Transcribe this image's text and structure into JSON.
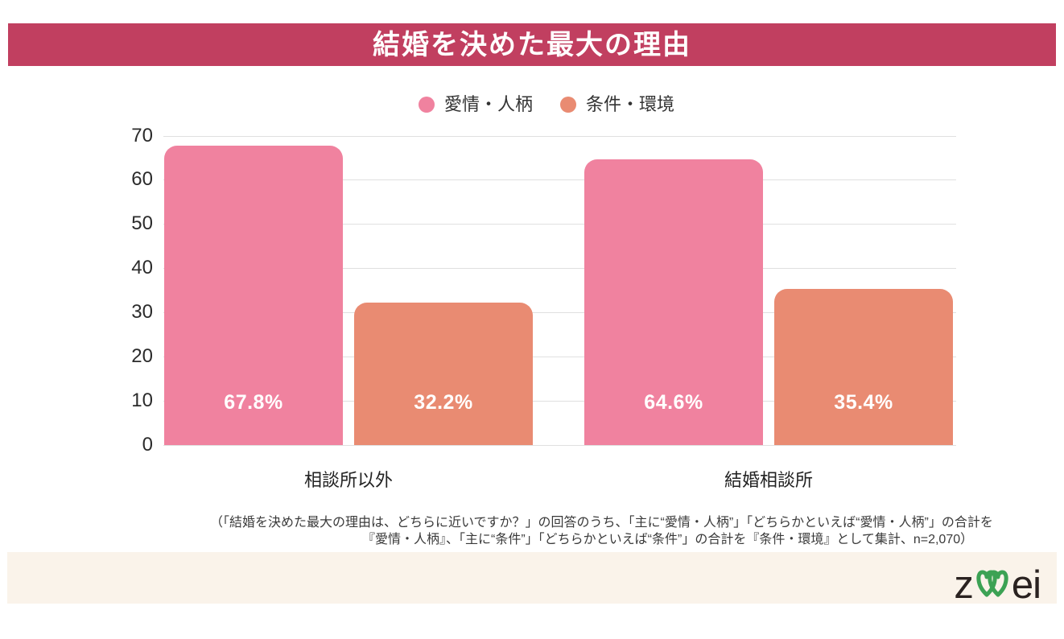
{
  "title": "結婚を決めた最大の理由",
  "legend": [
    {
      "label": "愛情・人柄",
      "color": "#F0829F"
    },
    {
      "label": "条件・環境",
      "color": "#E98B72"
    }
  ],
  "chart_data": {
    "type": "bar",
    "title": "結婚を決めた最大の理由",
    "categories": [
      "相談所以外",
      "結婚相談所"
    ],
    "series": [
      {
        "name": "愛情・人柄",
        "color": "#F0829F",
        "values": [
          67.8,
          64.6
        ]
      },
      {
        "name": "条件・環境",
        "color": "#E98B72",
        "values": [
          32.2,
          35.4
        ]
      }
    ],
    "value_labels": [
      [
        "67.8%",
        "32.2%"
      ],
      [
        "64.6%",
        "35.4%"
      ]
    ],
    "xlabel": "",
    "ylabel": "",
    "ylim": [
      0,
      70
    ],
    "yticks": [
      0,
      10,
      20,
      30,
      40,
      50,
      60,
      70
    ],
    "grid": true,
    "legend_position": "top"
  },
  "footnote": {
    "line1": "（「結婚を決めた最大の理由は、どちらに近いですか？」の回答のうち、「主に“愛情・人柄”」「どちらかといえば“愛情・人柄”」の合計を",
    "line2": "『愛情・人柄』、「主に“条件”」「どちらかといえば“条件”」の合計を『条件・環境』として集計、n=2,070）"
  },
  "footer": {
    "logo_text": "zwei",
    "logo_left": "z",
    "logo_right": "ei"
  },
  "colors": {
    "title_bar_bg": "#C13F60",
    "title_text": "#FFFFFF",
    "bar_pink": "#F0829F",
    "bar_orange": "#E98B72",
    "gridline": "#E0E0E0",
    "footer_strip_bg": "#FAF3EA",
    "logo_green": "#3CA254",
    "logo_dark": "#2A2220"
  }
}
